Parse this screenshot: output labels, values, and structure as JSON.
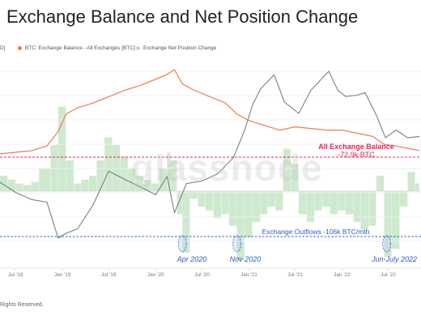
{
  "header": {
    "title": "Exchange Balance and Net Position Change"
  },
  "legend": {
    "price_stub": "D]",
    "balance_label": "BTC: Exchange Balance - All Exchanges [BTC]",
    "netpos_label": "Exchange Net Position Change"
  },
  "watermark": "glassnode",
  "footer": "Rights Reserved.",
  "colors": {
    "balance": "#ef7b4d",
    "price": "#7a7f86",
    "netpos_fill": "#cfe9cf",
    "annotation_red": "#e8215a",
    "annotation_blue": "#2c5bd6"
  },
  "chart_data": {
    "type": "area",
    "x_range": [
      "2018-05-01",
      "2022-10-31"
    ],
    "x_ticks": [
      "Jul '18",
      "Jan '19",
      "Jul '19",
      "Jan '20",
      "Jul '20",
      "Jan '21",
      "Jul '21",
      "Jan '22",
      "Jul '22"
    ],
    "y_scale": "not printed",
    "annotations": {
      "balance_line_label": "All Exchange Balance",
      "balance_line_value": "-72.9k BTC",
      "outflows_label": "Exchange Outflows -106k BTC/mth",
      "events": [
        "Apr 2020",
        "Nov 2020",
        "Jun-July 2022"
      ]
    },
    "series": [
      {
        "name": "BTC: Exchange Balance - All Exchanges [BTC]",
        "points": [
          [
            "2018-05-01",
            2.68
          ],
          [
            "2018-07-01",
            2.69
          ],
          [
            "2018-09-01",
            2.7
          ],
          [
            "2018-11-01",
            2.73
          ],
          [
            "2018-12-15",
            2.82
          ],
          [
            "2019-01-15",
            2.93
          ],
          [
            "2019-03-01",
            2.97
          ],
          [
            "2019-05-01",
            3.0
          ],
          [
            "2019-07-01",
            3.04
          ],
          [
            "2019-09-01",
            3.08
          ],
          [
            "2019-11-01",
            3.11
          ],
          [
            "2020-01-01",
            3.15
          ],
          [
            "2020-02-15",
            3.18
          ],
          [
            "2020-03-15",
            3.21
          ],
          [
            "2020-04-15",
            3.12
          ],
          [
            "2020-06-01",
            3.08
          ],
          [
            "2020-08-01",
            3.04
          ],
          [
            "2020-10-01",
            3.0
          ],
          [
            "2020-11-15",
            2.93
          ],
          [
            "2021-01-01",
            2.89
          ],
          [
            "2021-03-01",
            2.86
          ],
          [
            "2021-05-01",
            2.83
          ],
          [
            "2021-07-01",
            2.85
          ],
          [
            "2021-09-01",
            2.84
          ],
          [
            "2021-11-01",
            2.83
          ],
          [
            "2022-01-01",
            2.83
          ],
          [
            "2022-03-01",
            2.81
          ],
          [
            "2022-05-01",
            2.79
          ],
          [
            "2022-06-15",
            2.74
          ],
          [
            "2022-08-01",
            2.73
          ],
          [
            "2022-10-01",
            2.71
          ],
          [
            "2022-10-31",
            2.7
          ]
        ]
      },
      {
        "name": "Price",
        "points": [
          [
            "2018-05-01",
            9000
          ],
          [
            "2018-07-01",
            7500
          ],
          [
            "2018-09-01",
            6600
          ],
          [
            "2018-11-01",
            6300
          ],
          [
            "2018-12-15",
            3300
          ],
          [
            "2019-01-15",
            3600
          ],
          [
            "2019-03-01",
            3900
          ],
          [
            "2019-05-01",
            6000
          ],
          [
            "2019-07-01",
            11000
          ],
          [
            "2019-09-01",
            9500
          ],
          [
            "2019-11-01",
            8300
          ],
          [
            "2020-01-01",
            7200
          ],
          [
            "2020-02-15",
            10000
          ],
          [
            "2020-03-15",
            5200
          ],
          [
            "2020-05-01",
            8800
          ],
          [
            "2020-07-01",
            9200
          ],
          [
            "2020-09-01",
            10500
          ],
          [
            "2020-11-01",
            14000
          ],
          [
            "2020-12-15",
            23000
          ],
          [
            "2021-01-15",
            36000
          ],
          [
            "2021-02-15",
            48000
          ],
          [
            "2021-04-10",
            62000
          ],
          [
            "2021-05-20",
            38000
          ],
          [
            "2021-07-15",
            31000
          ],
          [
            "2021-09-01",
            47000
          ],
          [
            "2021-11-10",
            66000
          ],
          [
            "2021-12-15",
            47000
          ],
          [
            "2022-01-15",
            42000
          ],
          [
            "2022-03-01",
            43000
          ],
          [
            "2022-04-01",
            45000
          ],
          [
            "2022-05-15",
            30000
          ],
          [
            "2022-06-20",
            20000
          ],
          [
            "2022-08-01",
            23000
          ],
          [
            "2022-09-15",
            20000
          ],
          [
            "2022-10-31",
            20500
          ]
        ]
      },
      {
        "name": "Exchange Net Position Change",
        "points": [
          [
            "2018-05-01",
            20
          ],
          [
            "2018-06-01",
            15
          ],
          [
            "2018-07-01",
            10
          ],
          [
            "2018-08-01",
            8
          ],
          [
            "2018-09-01",
            12
          ],
          [
            "2018-10-01",
            30
          ],
          [
            "2018-11-15",
            60
          ],
          [
            "2018-12-15",
            110
          ],
          [
            "2019-01-15",
            40
          ],
          [
            "2019-02-15",
            10
          ],
          [
            "2019-03-15",
            15
          ],
          [
            "2019-04-15",
            20
          ],
          [
            "2019-05-15",
            40
          ],
          [
            "2019-06-15",
            70
          ],
          [
            "2019-07-15",
            60
          ],
          [
            "2019-08-15",
            45
          ],
          [
            "2019-09-15",
            30
          ],
          [
            "2019-10-15",
            20
          ],
          [
            "2019-11-15",
            15
          ],
          [
            "2019-12-15",
            10
          ],
          [
            "2020-01-15",
            30
          ],
          [
            "2020-02-15",
            50
          ],
          [
            "2020-03-01",
            40
          ],
          [
            "2020-03-25",
            -30
          ],
          [
            "2020-04-15",
            -80
          ],
          [
            "2020-05-15",
            -10
          ],
          [
            "2020-06-15",
            -20
          ],
          [
            "2020-07-15",
            -25
          ],
          [
            "2020-08-15",
            -35
          ],
          [
            "2020-09-15",
            -30
          ],
          [
            "2020-10-15",
            -45
          ],
          [
            "2020-11-15",
            -90
          ],
          [
            "2020-12-15",
            -60
          ],
          [
            "2021-01-15",
            -40
          ],
          [
            "2021-02-15",
            -30
          ],
          [
            "2021-03-15",
            -20
          ],
          [
            "2021-04-15",
            -25
          ],
          [
            "2021-05-15",
            55
          ],
          [
            "2021-06-15",
            35
          ],
          [
            "2021-07-15",
            -30
          ],
          [
            "2021-08-15",
            -40
          ],
          [
            "2021-09-15",
            -25
          ],
          [
            "2021-10-15",
            -20
          ],
          [
            "2021-11-15",
            -30
          ],
          [
            "2021-12-15",
            -25
          ],
          [
            "2022-01-15",
            -30
          ],
          [
            "2022-02-15",
            -40
          ],
          [
            "2022-03-15",
            -50
          ],
          [
            "2022-04-15",
            -45
          ],
          [
            "2022-05-15",
            20
          ],
          [
            "2022-06-15",
            -85
          ],
          [
            "2022-07-15",
            -75
          ],
          [
            "2022-08-15",
            -20
          ],
          [
            "2022-09-15",
            25
          ],
          [
            "2022-10-15",
            10
          ],
          [
            "2022-10-31",
            5
          ]
        ]
      }
    ]
  }
}
